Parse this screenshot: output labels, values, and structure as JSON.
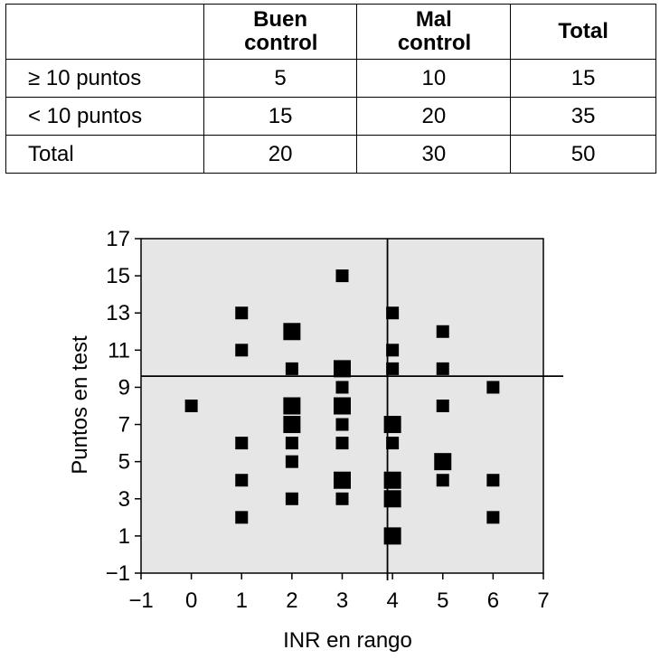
{
  "table": {
    "headers": [
      "",
      "Buen control",
      "Mal control",
      "Total"
    ],
    "rows": [
      {
        "label": "≥ 10 puntos",
        "values": [
          "5",
          "10",
          "15"
        ]
      },
      {
        "label": "< 10 puntos",
        "values": [
          "15",
          "20",
          "35"
        ]
      },
      {
        "label": "Total",
        "values": [
          "20",
          "30",
          "50"
        ]
      }
    ]
  },
  "chart_data": {
    "type": "scatter",
    "xlabel": "INR en rango",
    "ylabel": "Puntos en test",
    "xlim": [
      -1,
      7
    ],
    "ylim": [
      -1,
      17
    ],
    "xticks": [
      "−1",
      "0",
      "1",
      "2",
      "3",
      "4",
      "5",
      "6",
      "7"
    ],
    "yticks": [
      "−1",
      "1",
      "3",
      "5",
      "7",
      "9",
      "11",
      "13",
      "15",
      "17"
    ],
    "reference_lines": {
      "x": 3.9,
      "y": 9.6
    },
    "background": "#e6e6e6",
    "marker_color": "#000000",
    "points": [
      {
        "x": 0,
        "y": 8,
        "size": 1
      },
      {
        "x": 1,
        "y": 13,
        "size": 1
      },
      {
        "x": 1,
        "y": 11,
        "size": 1
      },
      {
        "x": 1,
        "y": 6,
        "size": 1
      },
      {
        "x": 1,
        "y": 4,
        "size": 1
      },
      {
        "x": 1,
        "y": 2,
        "size": 1
      },
      {
        "x": 2,
        "y": 12,
        "size": 2
      },
      {
        "x": 2,
        "y": 10,
        "size": 1
      },
      {
        "x": 2,
        "y": 8,
        "size": 2
      },
      {
        "x": 2,
        "y": 7,
        "size": 2
      },
      {
        "x": 2,
        "y": 6,
        "size": 1
      },
      {
        "x": 2,
        "y": 5,
        "size": 1
      },
      {
        "x": 2,
        "y": 3,
        "size": 1
      },
      {
        "x": 3,
        "y": 15,
        "size": 1
      },
      {
        "x": 3,
        "y": 10,
        "size": 2
      },
      {
        "x": 3,
        "y": 9,
        "size": 1
      },
      {
        "x": 3,
        "y": 8,
        "size": 2
      },
      {
        "x": 3,
        "y": 7,
        "size": 1
      },
      {
        "x": 3,
        "y": 6,
        "size": 1
      },
      {
        "x": 3,
        "y": 4,
        "size": 2
      },
      {
        "x": 3,
        "y": 3,
        "size": 1
      },
      {
        "x": 4,
        "y": 13,
        "size": 1
      },
      {
        "x": 4,
        "y": 11,
        "size": 1
      },
      {
        "x": 4,
        "y": 10,
        "size": 1
      },
      {
        "x": 4,
        "y": 7,
        "size": 2
      },
      {
        "x": 4,
        "y": 6,
        "size": 1
      },
      {
        "x": 4,
        "y": 4,
        "size": 2
      },
      {
        "x": 4,
        "y": 3,
        "size": 2
      },
      {
        "x": 4,
        "y": 1,
        "size": 2
      },
      {
        "x": 5,
        "y": 12,
        "size": 1
      },
      {
        "x": 5,
        "y": 10,
        "size": 1
      },
      {
        "x": 5,
        "y": 8,
        "size": 1
      },
      {
        "x": 5,
        "y": 5,
        "size": 2
      },
      {
        "x": 5,
        "y": 4,
        "size": 1
      },
      {
        "x": 6,
        "y": 9,
        "size": 1
      },
      {
        "x": 6,
        "y": 4,
        "size": 1
      },
      {
        "x": 6,
        "y": 2,
        "size": 1
      }
    ]
  }
}
